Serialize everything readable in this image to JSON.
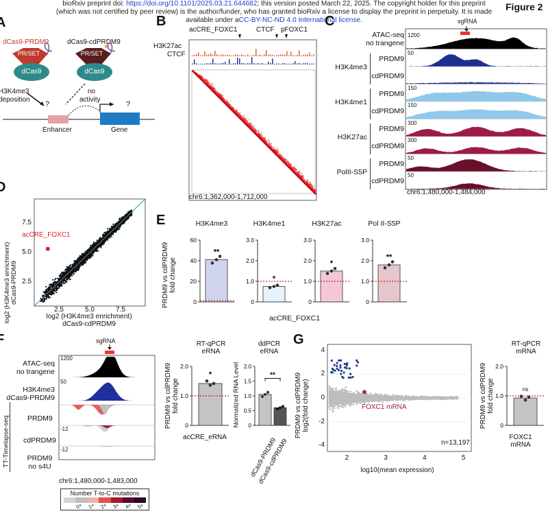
{
  "header": {
    "line1_a": "bioRxiv preprint doi: ",
    "line1_link": "https://doi.org/10.1101/2025.03.21.644682",
    "line1_b": "; this version posted March 22, 2025. The copyright holder for this preprint",
    "line2": "(which was not certified by peer review) is the author/funder, who has granted bioRxiv a license to display the preprint in perpetuity. It is made",
    "line3_a": "available under a",
    "line3_link": "CC-BY-NC-ND 4.0 International license",
    "line3_b": ".",
    "figure_label": "Figure 2"
  },
  "panelA": {
    "label": "A",
    "dcas9_prdm9": "dCas9-PRDM9",
    "dcas9_cdprdm9": "dCas9-cdPRDM9",
    "prset": "PR/SET",
    "dcas9": "dCas9",
    "h3k4me3": "H3K4me3",
    "deposition": "deposition",
    "no": "no",
    "activity": "activity",
    "q": "?",
    "enhancer": "Enhancer",
    "gene": "Gene"
  },
  "panelB": {
    "label": "B",
    "acCRE": "acCRE_FOXC1",
    "ctcf_top": "CTCF",
    "pFOXC1": "pFOXC1",
    "h3k27ac": "H3K27ac",
    "ctcf": "CTCF",
    "coords": "chr6:1,362,000-1,712,000"
  },
  "panelC": {
    "label": "C",
    "sgRNA": "sgRNA",
    "coords": "chr6:1,480,000-1,484,000",
    "tracks": [
      {
        "group": "ATAC-seq",
        "group2": "no trangene",
        "scale": "1200",
        "color": "#000000",
        "row": ""
      },
      {
        "group": "H3K4me3",
        "group2": "",
        "scale": "50",
        "color": "#1f2f8f",
        "row": "PRDM9"
      },
      {
        "group": "",
        "group2": "",
        "scale": "",
        "color": "#1f2f8f",
        "row": "cdPRDM9"
      },
      {
        "group": "H3K4me1",
        "group2": "",
        "scale": "150",
        "color": "#8fc8ea",
        "row": "PRDM9"
      },
      {
        "group": "",
        "group2": "",
        "scale": "150",
        "color": "#8fc8ea",
        "row": "cdPRDM9"
      },
      {
        "group": "H3K27ac",
        "group2": "",
        "scale": "300",
        "color": "#9e1a4a",
        "row": "PRDM9"
      },
      {
        "group": "",
        "group2": "",
        "scale": "300",
        "color": "#9e1a4a",
        "row": "cdPRDM9"
      },
      {
        "group": "PolII-S5P",
        "group2": "",
        "scale": "50",
        "color": "#6a0f2a",
        "row": "PRDM9"
      },
      {
        "group": "",
        "group2": "",
        "scale": "50",
        "color": "#6a0f2a",
        "row": "cdPRDM9"
      }
    ]
  },
  "panelD": {
    "label": "D",
    "ylabel1": "log2 (H3K4me3 enrichment)",
    "ylabel2": "dCas9-PRDM9",
    "xlabel1": "log2 (H3K4me3 enrichment)",
    "xlabel2": "dCas9-cdPRDM9",
    "highlight": "acCRE_FOXC1",
    "xticks": [
      "2.5",
      "5.0",
      "7.5"
    ],
    "yticks": [
      "2.5",
      "5.0",
      "7.5"
    ]
  },
  "panelE": {
    "label": "E",
    "ylabel1": "PRDM9 vs cdPRDM9",
    "ylabel2": "fold change",
    "xlabel": "acCRE_FOXC1",
    "yticks": [
      "0",
      "1.0",
      "2.0",
      "3.0"
    ],
    "charts": [
      {
        "title": "H3K4me3",
        "value": 41,
        "ymax": 60,
        "ticks": [
          "0",
          "20",
          "40",
          "60"
        ],
        "sig": "**",
        "color": "#cfd3ec"
      },
      {
        "title": "H3K4me1",
        "value": 0.75,
        "ymax": 3.0,
        "ticks": [
          "0",
          "1.0",
          "2.0",
          "3.0"
        ],
        "sig": "*",
        "color": "#e3f2fb"
      },
      {
        "title": "H3K27ac",
        "value": 1.5,
        "ymax": 3.0,
        "ticks": [
          "0",
          "1.0",
          "2.0",
          "3.0"
        ],
        "sig": "*",
        "color": "#f3c7d5"
      },
      {
        "title": "Pol II-S5P",
        "value": 1.8,
        "ymax": 3.0,
        "ticks": [
          "0",
          "1.0",
          "2.0",
          "3.0"
        ],
        "sig": "**",
        "color": "#e5c6cb"
      }
    ]
  },
  "panelF": {
    "label": "F",
    "sgRNA": "sgRNA",
    "atac1": "ATAC-seq",
    "atac2": "no trangene",
    "atac_scale": "1200",
    "h3k4me3_1": "H3K4me3",
    "h3k4me3_2": "dCas9-PRDM9",
    "h3k4me3_scale": "50",
    "side": "TT-Timelapse-seq",
    "prdm9": "PRDM9",
    "cdprdm9": "cdPRDM9",
    "scale_neg": "-12",
    "prdm9_no1": "PRDM9",
    "prdm9_no2": "no s4U",
    "coords": "chr6:1,480,000-1,483,000",
    "legend_title": "Number T-to-C mutations",
    "legend_labels": [
      "0+",
      "1+",
      "2+",
      "3+",
      "4+",
      "5+"
    ],
    "legend_colors": [
      "#d3d3d3",
      "#bdbdbd",
      "#f0b0b0",
      "#e05050",
      "#a01830",
      "#5a0a35",
      "#2a0a25"
    ]
  },
  "panelF_qpcr": {
    "title1": "RT-qPCR",
    "title2": "eRNA",
    "ylabel1": "PRDM9 vs cdPRDM9",
    "ylabel2": "fold change",
    "xlabel": "acCRE_eRNA",
    "value": 1.42,
    "ymax": 2.0,
    "ticks": [
      "0",
      "1.0",
      "2.0"
    ],
    "sig": "*"
  },
  "panelF_ddpcr": {
    "title1": "ddPCR",
    "title2": "eRNA",
    "ylabel": "Normalized RNA Level",
    "categories": [
      "dCas9-PRDM9",
      "dCas9-cdPRDM9"
    ],
    "values": [
      1.05,
      0.6
    ],
    "ymax": 2.0,
    "ticks": [
      "0",
      "0.5",
      "1.0",
      "1.5",
      "2.0"
    ],
    "sig": "**"
  },
  "panelG": {
    "label": "G",
    "ylabel1": "PRDM9 vs cdPRDM9",
    "ylabel2": "log2(fold change)",
    "xlabel": "log10(mean expression)",
    "xticks": [
      "2",
      "3",
      "4",
      "5"
    ],
    "yticks": [
      "4",
      "2",
      "0",
      "-2",
      "-4"
    ],
    "annotation": "FOXC1 mRNA",
    "n": "n=13,197"
  },
  "panelG_qpcr": {
    "title1": "RT-qPCR",
    "title2": "mRNA",
    "ylabel1": "PRDM9 vs cdPRDM9",
    "ylabel2": "fold change",
    "xlabel1": "FOXC1",
    "xlabel2": "mRNA",
    "value": 0.93,
    "ymax": 2.0,
    "ticks": [
      "0",
      "1.0",
      "2.0"
    ],
    "sig": "ns"
  },
  "chart_data": [
    {
      "type": "bar",
      "title": "H3K4me3",
      "categories": [
        "acCRE_FOXC1"
      ],
      "values": [
        41
      ],
      "ylabel": "PRDM9 vs cdPRDM9 fold change",
      "ylim": [
        0,
        60
      ]
    },
    {
      "type": "bar",
      "title": "H3K4me1",
      "categories": [
        "acCRE_FOXC1"
      ],
      "values": [
        0.75
      ],
      "ylim": [
        0,
        3
      ]
    },
    {
      "type": "bar",
      "title": "H3K27ac",
      "categories": [
        "acCRE_FOXC1"
      ],
      "values": [
        1.5
      ],
      "ylim": [
        0,
        3
      ]
    },
    {
      "type": "bar",
      "title": "Pol II-S5P",
      "categories": [
        "acCRE_FOXC1"
      ],
      "values": [
        1.8
      ],
      "ylim": [
        0,
        3
      ]
    },
    {
      "type": "bar",
      "title": "RT-qPCR eRNA",
      "categories": [
        "acCRE_eRNA"
      ],
      "values": [
        1.42
      ],
      "ylim": [
        0,
        2
      ]
    },
    {
      "type": "bar",
      "title": "ddPCR eRNA",
      "categories": [
        "dCas9-PRDM9",
        "dCas9-cdPRDM9"
      ],
      "values": [
        1.05,
        0.6
      ],
      "ylabel": "Normalized RNA Level",
      "ylim": [
        0,
        2
      ]
    },
    {
      "type": "bar",
      "title": "RT-qPCR mRNA",
      "categories": [
        "FOXC1 mRNA"
      ],
      "values": [
        0.93
      ],
      "ylim": [
        0,
        2
      ]
    },
    {
      "type": "scatter",
      "xlabel": "log10(mean expression)",
      "ylabel": "PRDM9 vs cdPRDM9 log2(fold change)",
      "xlim": [
        1.5,
        5.2
      ],
      "ylim": [
        -4.5,
        4.5
      ],
      "highlight": {
        "label": "FOXC1 mRNA",
        "x": 2.45,
        "y": 0.5
      }
    },
    {
      "type": "scatter",
      "xlabel": "log2 (H3K4me3 enrichment) dCas9-cdPRDM9",
      "ylabel": "log2 (H3K4me3 enrichment) dCas9-PRDM9",
      "xlim": [
        0.5,
        9.5
      ],
      "ylim": [
        0.5,
        9.5
      ],
      "highlight": {
        "label": "acCRE_FOXC1",
        "x": 1.6,
        "y": 5.3
      }
    }
  ]
}
